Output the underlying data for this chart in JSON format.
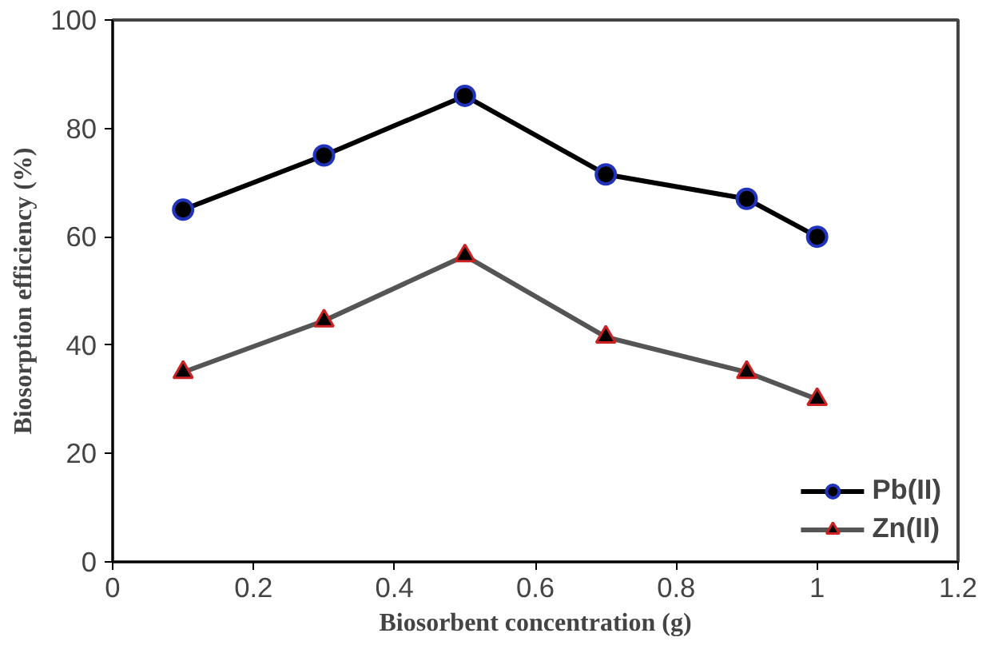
{
  "chart_data": {
    "type": "line",
    "xlabel": "Biosorbent concentration (g)",
    "ylabel": "Biosorption efficiency (%)",
    "x": [
      0.1,
      0.3,
      0.5,
      0.7,
      0.9,
      1.0
    ],
    "series": [
      {
        "name": "Pb(II)",
        "color": "#000000",
        "marker": "circle",
        "values": [
          65,
          75,
          86,
          71.5,
          67,
          60
        ]
      },
      {
        "name": "Zn(II)",
        "color": "#555555",
        "marker": "triangle",
        "values": [
          35,
          44.5,
          56.5,
          41.5,
          35,
          30
        ]
      }
    ],
    "xlim": [
      0,
      1.2
    ],
    "xticks": [
      0,
      {
        "value": 0.2,
        "label": "0.2"
      },
      {
        "value": 0.4,
        "label": "0.4"
      },
      {
        "value": 0.6,
        "label": "0.6"
      },
      {
        "value": 0.8,
        "label": "0.8"
      },
      1,
      {
        "value": 1.2,
        "label": "1.2"
      }
    ],
    "ylim": [
      0,
      100
    ],
    "yticks": [
      0,
      20,
      40,
      60,
      80,
      100
    ],
    "grid": false,
    "legend": "bottom right"
  }
}
